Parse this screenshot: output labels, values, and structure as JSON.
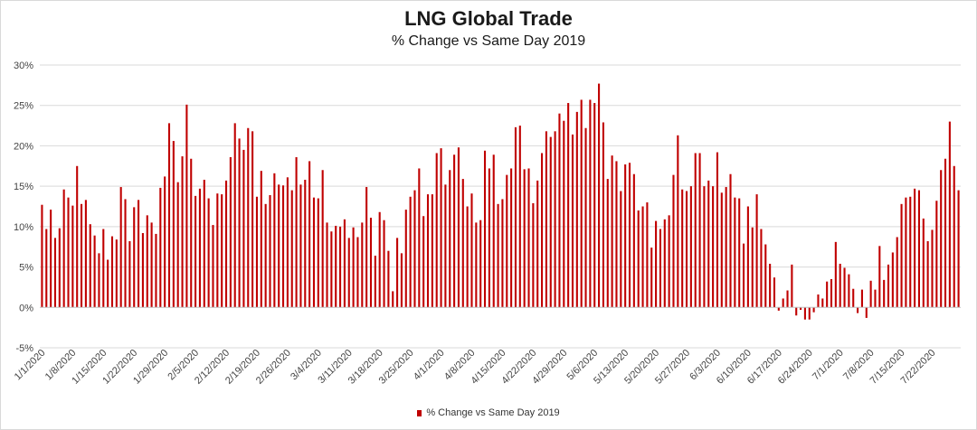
{
  "chart_data": {
    "type": "bar",
    "title": "LNG Global Trade",
    "subtitle": "% Change vs Same Day 2019",
    "xlabel": "",
    "ylabel": "",
    "ylim": [
      -5,
      30
    ],
    "yticks": [
      -5,
      0,
      5,
      10,
      15,
      20,
      25,
      30
    ],
    "ytick_labels": [
      "-5%",
      "0%",
      "5%",
      "10%",
      "15%",
      "20%",
      "25%",
      "30%"
    ],
    "x_tick_labels": [
      "1/1/2020",
      "1/8/2020",
      "1/15/2020",
      "1/22/2020",
      "1/29/2020",
      "2/5/2020",
      "2/12/2020",
      "2/19/2020",
      "2/26/2020",
      "3/4/2020",
      "3/11/2020",
      "3/18/2020",
      "3/25/2020",
      "4/1/2020",
      "4/8/2020",
      "4/15/2020",
      "4/22/2020",
      "4/29/2020",
      "5/6/2020",
      "5/13/2020",
      "5/20/2020",
      "5/27/2020",
      "6/3/2020",
      "6/10/2020",
      "6/17/2020",
      "6/24/2020",
      "7/1/2020",
      "7/8/2020",
      "7/15/2020",
      "7/22/2020"
    ],
    "grid": true,
    "legend_position": "bottom",
    "series": [
      {
        "name": "% Change vs Same Day 2019",
        "color": "#c00000",
        "start_date": "1/1/2020",
        "values": [
          12.7,
          9.7,
          12.1,
          8.6,
          9.8,
          14.6,
          13.6,
          12.6,
          17.5,
          12.8,
          13.3,
          10.3,
          8.9,
          6.7,
          9.7,
          5.9,
          8.8,
          8.4,
          14.9,
          13.4,
          8.2,
          12.4,
          13.3,
          9.2,
          11.4,
          10.5,
          9.1,
          14.8,
          16.2,
          22.8,
          20.6,
          15.5,
          18.7,
          25.1,
          18.4,
          13.8,
          14.7,
          15.8,
          13.5,
          10.2,
          14.1,
          14.0,
          15.7,
          18.6,
          22.8,
          20.9,
          19.5,
          22.2,
          21.8,
          13.7,
          16.9,
          12.8,
          13.9,
          16.6,
          15.2,
          15.1,
          16.1,
          14.5,
          18.6,
          15.2,
          15.8,
          18.1,
          13.6,
          13.5,
          17.0,
          10.5,
          9.4,
          10.1,
          10.0,
          10.9,
          8.6,
          9.9,
          8.7,
          10.5,
          14.9,
          11.1,
          6.4,
          11.8,
          10.8,
          7.0,
          2.0,
          8.6,
          6.7,
          12.1,
          13.7,
          14.5,
          17.2,
          11.3,
          14.0,
          14.0,
          19.1,
          19.7,
          15.2,
          17.0,
          18.9,
          19.8,
          15.9,
          12.5,
          14.1,
          10.5,
          10.8,
          19.4,
          17.2,
          18.9,
          12.8,
          13.4,
          16.4,
          17.2,
          22.3,
          22.5,
          17.1,
          17.2,
          12.9,
          15.7,
          19.1,
          21.8,
          21.1,
          21.8,
          24.0,
          23.1,
          25.3,
          21.4,
          24.2,
          25.7,
          22.2,
          25.7,
          25.3,
          27.7,
          22.9,
          15.9,
          18.8,
          18.1,
          14.4,
          17.7,
          17.9,
          16.5,
          12.0,
          12.5,
          13.0,
          7.4,
          10.7,
          9.7,
          10.9,
          11.4,
          16.4,
          21.3,
          14.6,
          14.4,
          15.0,
          19.1,
          19.1,
          15.0,
          15.7,
          15.0,
          19.2,
          14.2,
          14.9,
          16.5,
          13.6,
          13.5,
          7.9,
          12.5,
          9.9,
          14.0,
          9.7,
          7.8,
          5.4,
          3.7,
          -0.4,
          1.1,
          2.1,
          5.3,
          -1.0,
          -0.3,
          -1.5,
          -1.5,
          -0.6,
          1.6,
          1.1,
          3.2,
          3.5,
          8.1,
          5.4,
          4.9,
          4.1,
          2.3,
          -0.7,
          2.2,
          -1.3,
          3.3,
          2.2,
          7.6,
          3.4,
          5.3,
          6.8,
          8.7,
          12.8,
          13.6,
          13.7,
          14.7,
          14.5,
          11.0,
          8.2,
          9.6,
          13.2,
          17.0,
          18.4,
          23.0,
          17.5,
          14.5
        ]
      }
    ]
  }
}
